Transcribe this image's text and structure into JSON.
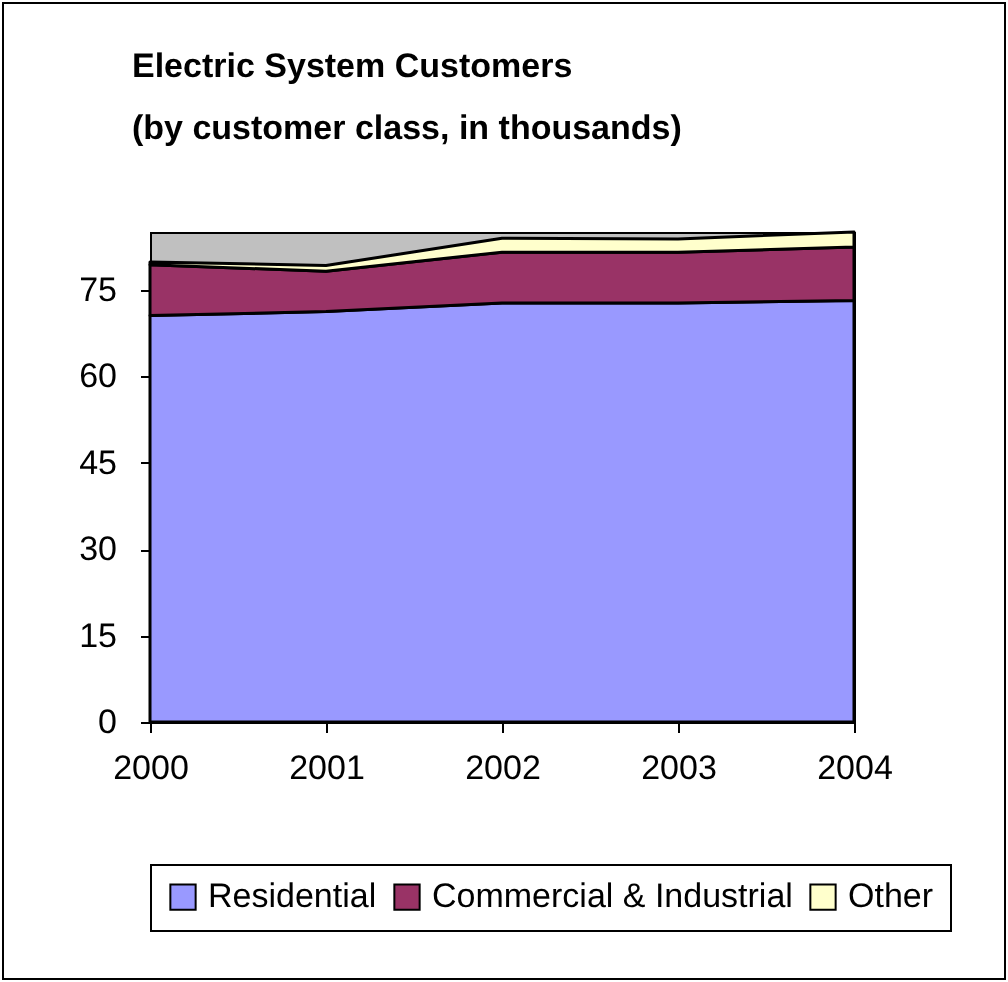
{
  "chart_data": {
    "type": "area",
    "title": "Electric System Customers",
    "subtitle": "(by customer class, in thousands)",
    "x": [
      2000,
      2001,
      2002,
      2003,
      2004
    ],
    "stacked": true,
    "xlim": [
      2000,
      2004
    ],
    "xticks": [
      2000,
      2001,
      2002,
      2003,
      2004
    ],
    "ylim": [
      0,
      85
    ],
    "yticks": [
      0,
      15,
      30,
      45,
      60,
      75
    ],
    "grid": false,
    "legend": "bottom",
    "series": [
      {
        "name": "Residential",
        "color": "#9999ff",
        "values": [
          70.5,
          71.2,
          72.7,
          72.7,
          73.1
        ]
      },
      {
        "name": "Commercial & Industrial",
        "color": "#993366",
        "values": [
          8.8,
          7.0,
          8.8,
          8.8,
          9.3
        ]
      },
      {
        "name": "Other",
        "color": "#ffffcc",
        "values": [
          0.5,
          1.0,
          2.4,
          2.3,
          2.6
        ]
      }
    ]
  }
}
